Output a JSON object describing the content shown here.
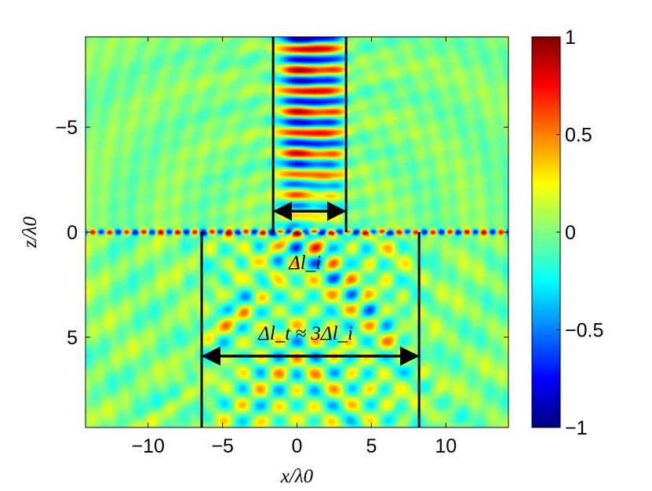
{
  "chart_data": {
    "type": "heatmap",
    "title": "",
    "xlabel": "x/λ0",
    "ylabel": "z/λ0",
    "xlim": [
      -14.2,
      14.2
    ],
    "ylim": [
      -9.3,
      9.3
    ],
    "y_axis_inverted": true,
    "x_ticks": [
      -10,
      -5,
      0,
      5,
      10
    ],
    "x_tick_labels": [
      "−10",
      "−5",
      "0",
      "5",
      "10"
    ],
    "y_ticks": [
      -5,
      0,
      5
    ],
    "y_tick_labels": [
      "−5",
      "0",
      "5"
    ],
    "colorbar": {
      "colormap": "jet",
      "range": [
        -1,
        1
      ],
      "ticks": [
        1,
        0.5,
        0,
        -0.5,
        -1
      ],
      "tick_labels": [
        "1",
        "0.5",
        "0",
        "−0.5",
        "−1"
      ]
    },
    "interface_z": 0,
    "incident_beam": {
      "x_left": -1.6,
      "x_right": 3.3,
      "z_top": -9.3,
      "z_bottom": 0,
      "arrow_z": -1.0,
      "label": "Δl_i"
    },
    "transmitted_beam": {
      "x_left": -6.4,
      "x_right": 8.2,
      "z_top": 0,
      "z_bottom": 9.3,
      "arrow_z": 5.9,
      "label": "Δl_t ≈ 3Δl_i"
    },
    "grid": false
  }
}
